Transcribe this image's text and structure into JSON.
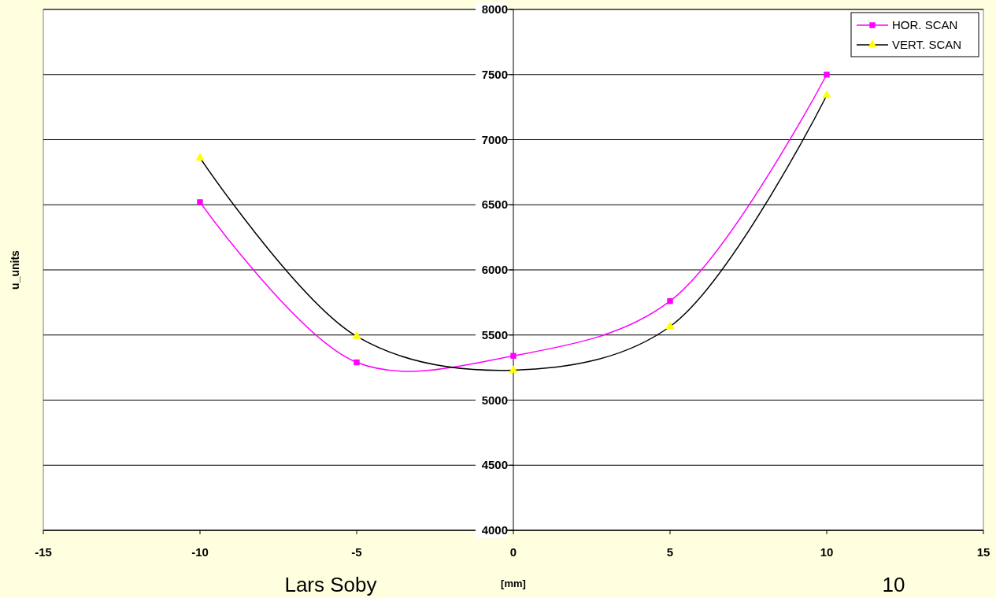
{
  "chart_data": {
    "type": "line",
    "xlabel": "[mm]",
    "ylabel": "u_units",
    "x": [
      -10,
      -5,
      0,
      5,
      10
    ],
    "series": [
      {
        "name": "HOR. SCAN",
        "color": "#ff00ff",
        "marker": "square",
        "values": [
          6520,
          5290,
          5340,
          5760,
          7500
        ]
      },
      {
        "name": "VERT. SCAN",
        "color": "#000000",
        "marker": "triangle",
        "values": [
          6860,
          5490,
          5230,
          5565,
          7340
        ]
      }
    ],
    "xlim": [
      -15,
      15
    ],
    "xticks": [
      -15,
      -10,
      -5,
      0,
      5,
      10,
      15
    ],
    "ylim": [
      4000,
      8000
    ],
    "yticks": [
      4000,
      4500,
      5000,
      5500,
      6000,
      6500,
      7000,
      7500,
      8000
    ],
    "grid": "y",
    "legend": "top right",
    "annotations": [
      "Lars Soby",
      "10"
    ]
  }
}
